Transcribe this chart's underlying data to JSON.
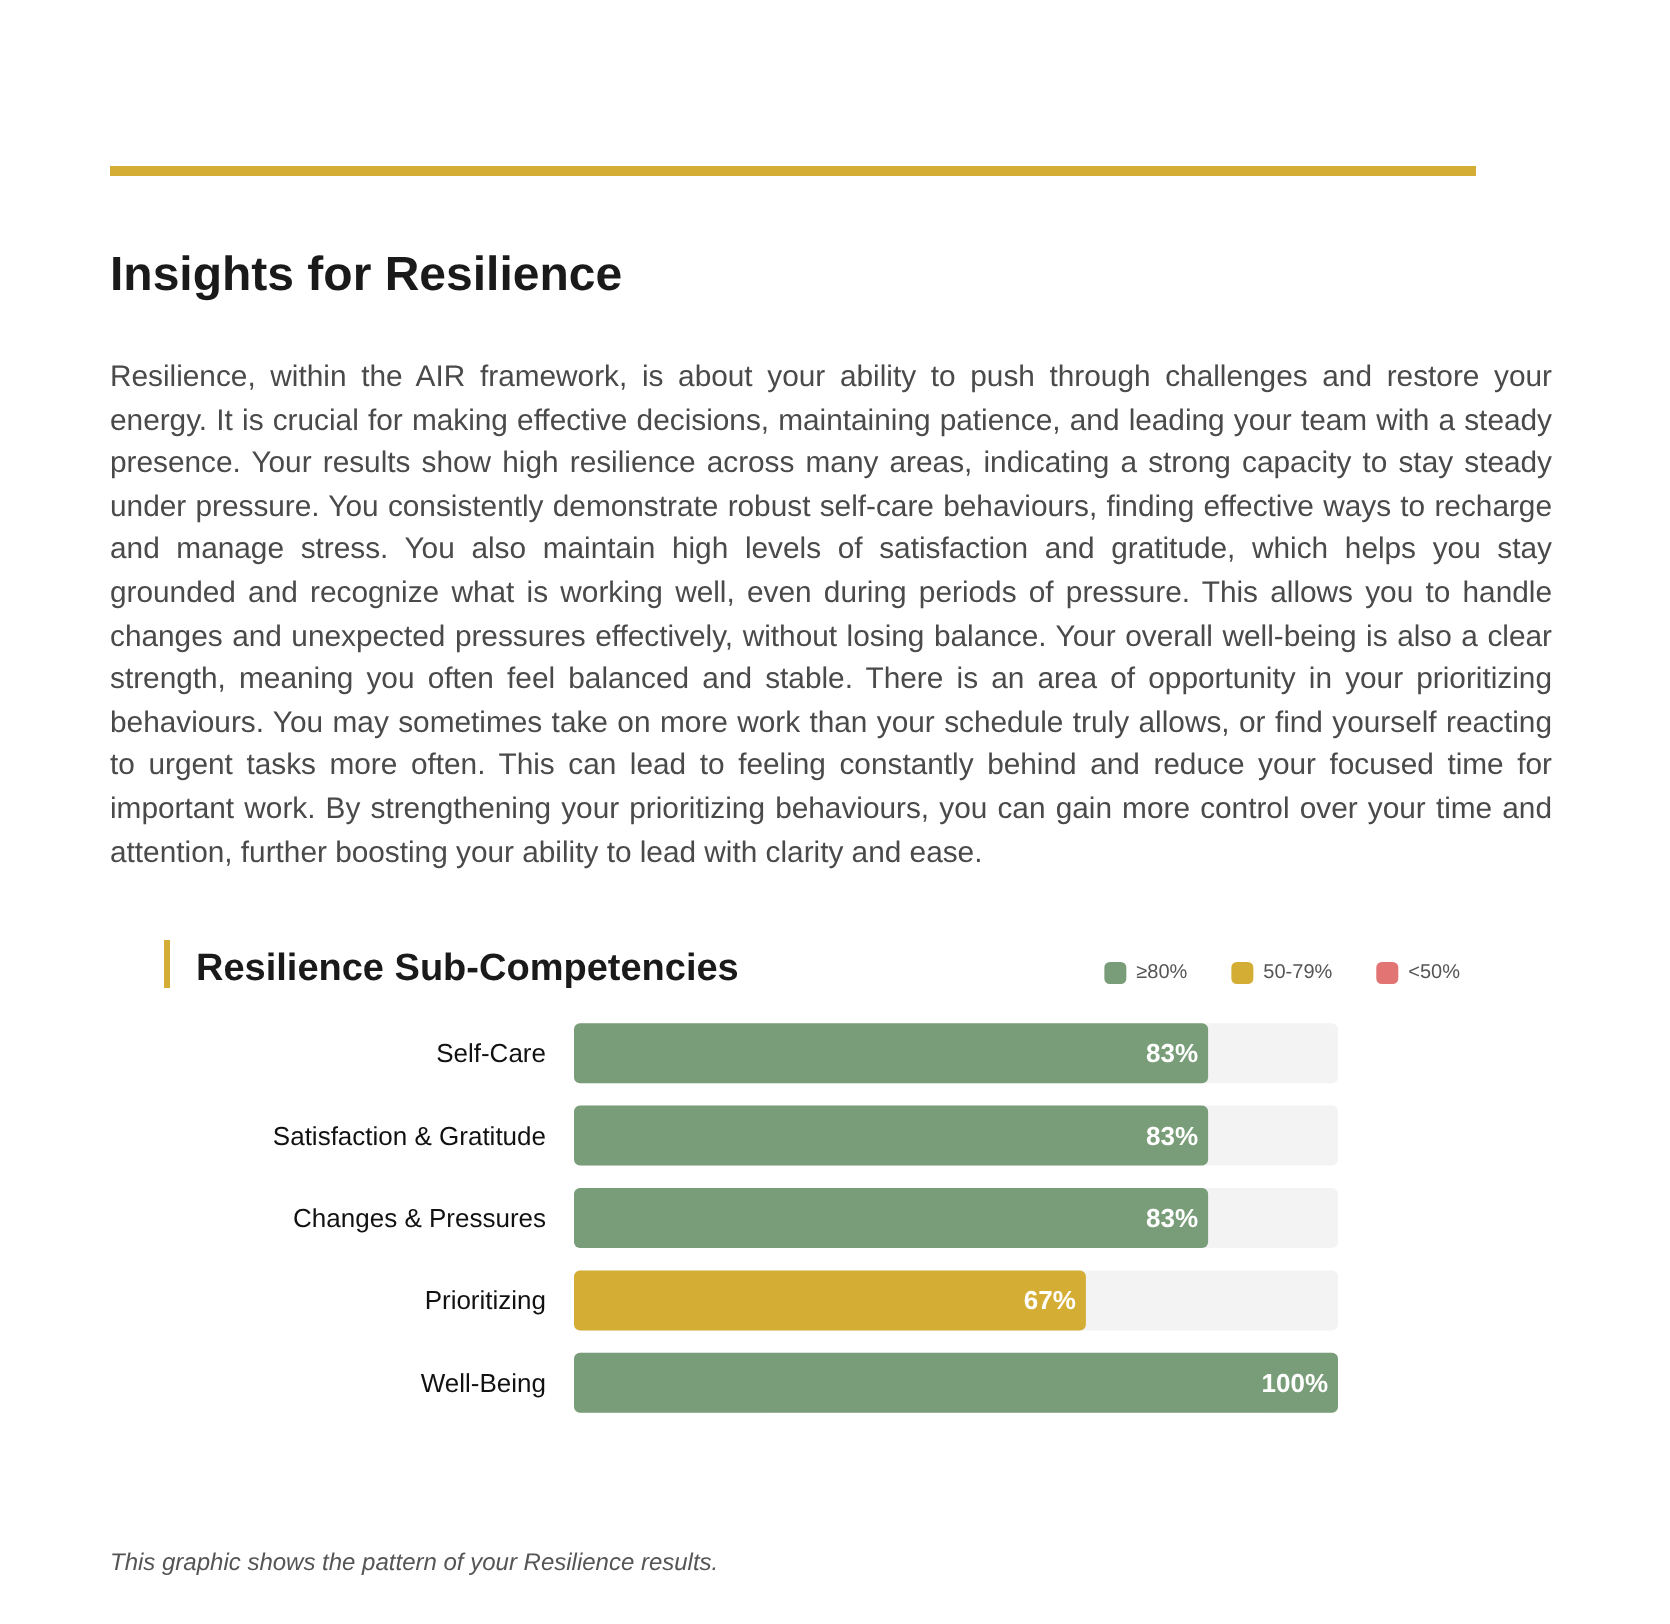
{
  "chart_data": {
    "type": "bar",
    "title": "Insights for Resilience",
    "subtitle": "Resilience Sub-Competencies",
    "annotations": [
      "Resilience, within the AIR framework, is about your ability to push through challenges and restore your energy. It is crucial for making effective decisions, maintaining patience, and leading your team with a steady presence. Your results show high resilience across many areas, indicating a strong capacity to stay steady under pressure. You consistently demonstrate robust self-care behaviours, finding effective ways to recharge and manage stress. You also maintain high levels of satisfaction and gratitude, which helps you stay grounded and recognize what is working well, even during periods of pressure. This allows you to handle changes and unexpected pressures effectively, without losing balance. Your overall well-being is also a clear strength, meaning you often feel balanced and stable. There is an area of opportunity in your prioritizing behaviours. You may sometimes take on more work than your schedule truly allows, or find yourself reacting to urgent tasks more often. This can lead to feeling constantly behind and reduce your focused time for important work. By strengthening your prioritizing behaviours, you can gain more control over your time and attention, further boosting your ability to lead with clarity and ease.",
      "This graphic shows the pattern of your Resilience results."
    ],
    "categories": [
      "Self-Care",
      "Satisfaction & Gratitude",
      "Changes & Pressures",
      "Prioritizing",
      "Well-Being"
    ],
    "orientation": "horizontal",
    "stacked": true,
    "tick_labels": "y",
    "legend": "top right",
    "grid": false,
    "series": [
      {
        "name": "≥80%",
        "color": "#789d78",
        "values": [
          83,
          83,
          83,
          null,
          100
        ],
        "value_labels": [
          "83%",
          "83%",
          "83%",
          null,
          "100%"
        ]
      },
      {
        "name": "50-79%",
        "color": "#d4ad35",
        "values": [
          null,
          null,
          null,
          67,
          null
        ],
        "value_labels": [
          null,
          null,
          null,
          "67%",
          null
        ]
      },
      {
        "name": "<50%",
        "color": "#e27474",
        "values": [
          null,
          null,
          null,
          null,
          null
        ]
      }
    ]
  }
}
